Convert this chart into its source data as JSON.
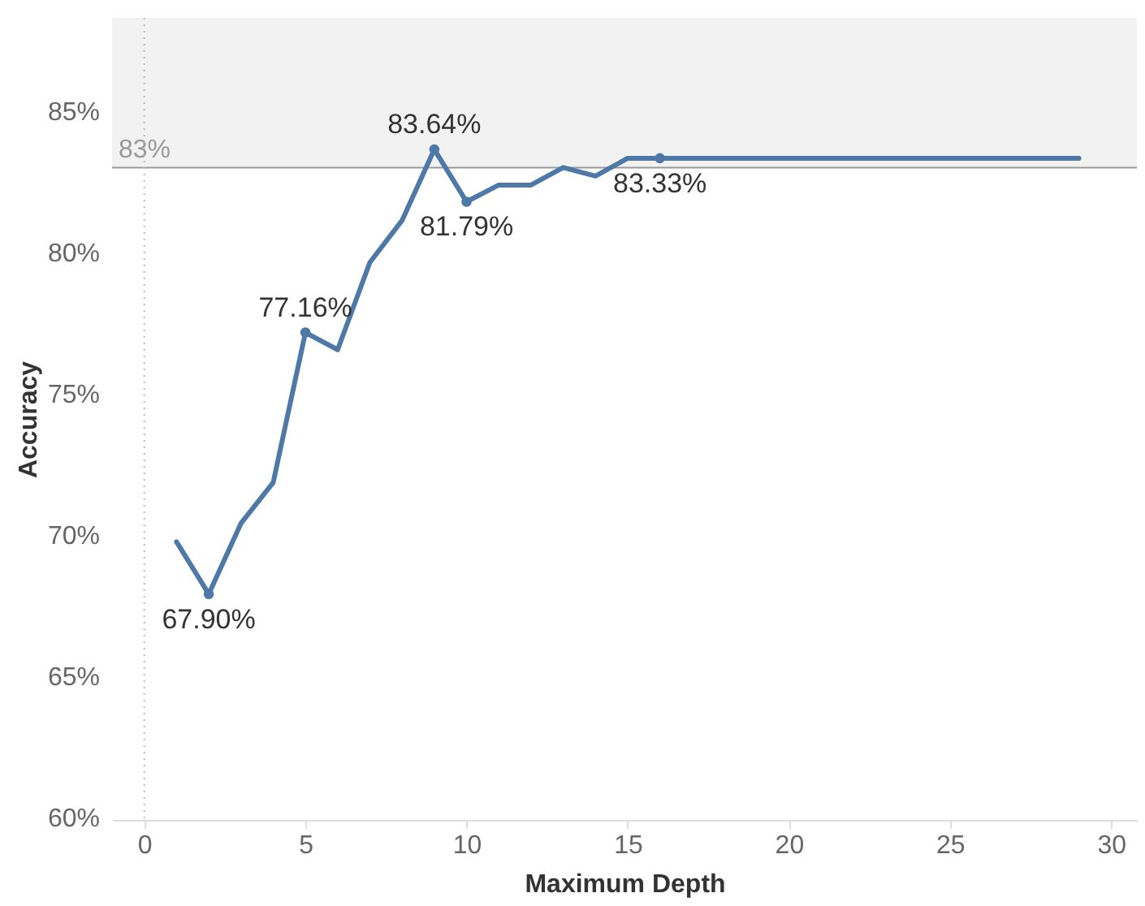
{
  "chart_data": {
    "type": "line",
    "xlabel": "Maximum Depth",
    "ylabel": "Accuracy",
    "x": [
      1,
      2,
      3,
      4,
      5,
      6,
      7,
      8,
      9,
      10,
      11,
      12,
      13,
      14,
      15,
      16,
      17,
      18,
      19,
      20,
      21,
      22,
      23,
      24,
      25,
      26,
      27,
      28,
      29
    ],
    "series": [
      {
        "color": "#4e79a7",
        "values": [
          69.75,
          67.9,
          70.4,
          71.85,
          77.16,
          76.55,
          79.64,
          81.13,
          83.64,
          81.79,
          82.38,
          82.38,
          83.0,
          82.7,
          83.33,
          83.33,
          83.33,
          83.33,
          83.33,
          83.33,
          83.33,
          83.33,
          83.33,
          83.33,
          83.33,
          83.33,
          83.33,
          83.33,
          83.33
        ],
        "value_labels": [
          null,
          "67.90%",
          null,
          null,
          "77.16%",
          null,
          null,
          null,
          "83.64%",
          "81.79%",
          null,
          null,
          null,
          null,
          null,
          "83.33%",
          null,
          null,
          null,
          null,
          null,
          null,
          null,
          null,
          null,
          null,
          null,
          null,
          null
        ]
      }
    ],
    "xlim": [
      -1,
      30.8
    ],
    "xticks": [
      0,
      5,
      10,
      15,
      20,
      25,
      30
    ],
    "ylim": [
      59.9,
      88.3
    ],
    "yticks": [
      {
        "value": 60,
        "label": "60%"
      },
      {
        "value": 65,
        "label": "65%"
      },
      {
        "value": 70,
        "label": "70%"
      },
      {
        "value": 75,
        "label": "75%"
      },
      {
        "value": 80,
        "label": "80%"
      },
      {
        "value": 85,
        "label": "85%"
      }
    ],
    "bands": [
      {
        "axis": "y",
        "from": 83,
        "to": 88.3,
        "color": "#f2f2f2"
      }
    ],
    "ref_lines": [
      {
        "axis": "y",
        "value": 83,
        "label": "83%",
        "color": "#999999",
        "line_style": "solid"
      },
      {
        "axis": "x",
        "value": 0,
        "color": "#bbbbbb",
        "line_style": "dotted"
      }
    ],
    "grid": false
  }
}
